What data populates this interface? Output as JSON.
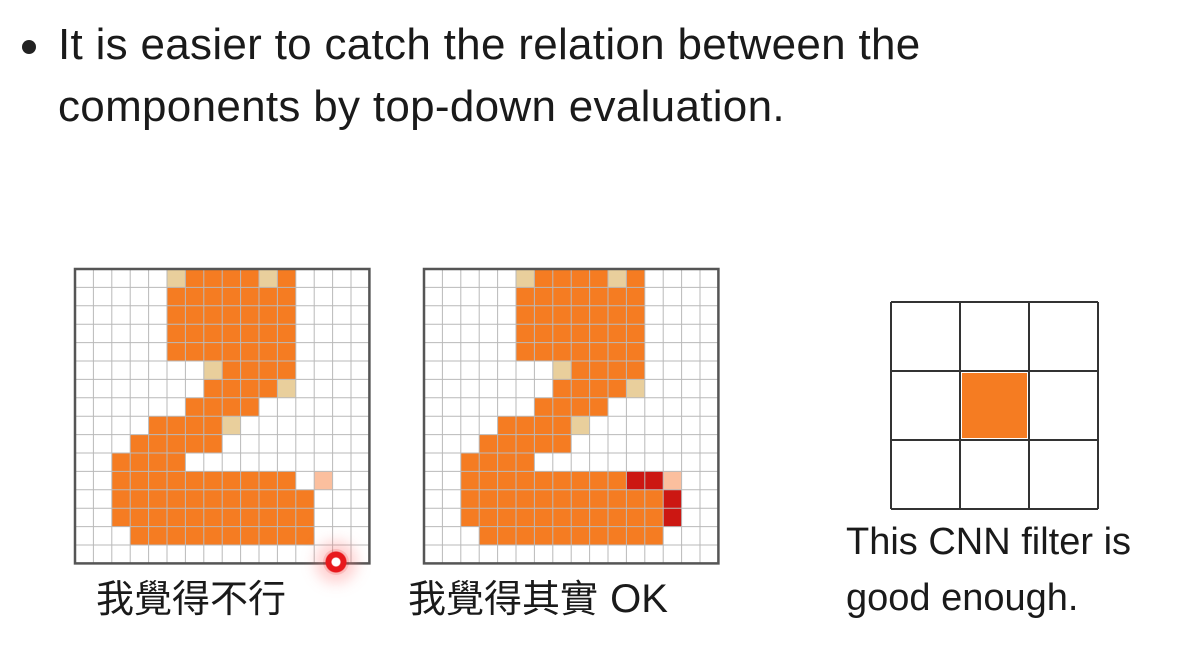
{
  "bullet": {
    "text": "It is easier to catch the relation between the components by top-down evaluation."
  },
  "left_grid": {
    "caption": "我覺得不行"
  },
  "right_grid": {
    "caption_cjk": "我覺得其實",
    "caption_latin": "OK"
  },
  "filter": {
    "caption": "This CNN filter is good enough."
  },
  "colors": {
    "orange": "#f57c22",
    "tan": "#e9cf9c",
    "light_orange": "#fbbf9e",
    "dark_red": "#cc1712",
    "grid_line": "#b9b9b9",
    "frame": "#555555"
  }
}
